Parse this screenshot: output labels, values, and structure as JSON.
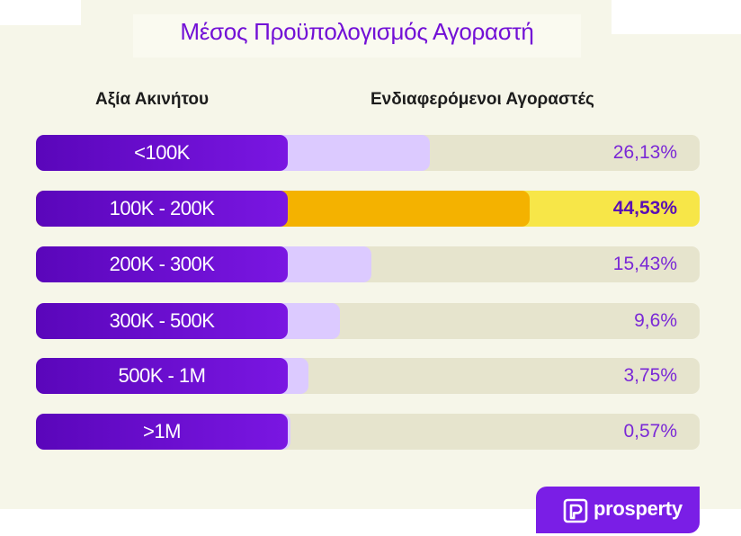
{
  "header": {
    "title": "Μέσος Προϋπολογισμός Αγοραστή"
  },
  "columns": {
    "left": "Αξία Ακινήτου",
    "right": "Ενδιαφερόμενοι Αγοραστές"
  },
  "rows": [
    {
      "label": "<100K",
      "value_text": "26,13%"
    },
    {
      "label": "100K - 200K",
      "value_text": "44,53%"
    },
    {
      "label": "200K - 300K",
      "value_text": "15,43%"
    },
    {
      "label": "300K - 500K",
      "value_text": "9,6%"
    },
    {
      "label": "500K - 1M",
      "value_text": "3,75%"
    },
    {
      "label": ">1M",
      "value_text": "0,57%"
    }
  ],
  "chart_data": {
    "type": "bar",
    "orientation": "horizontal",
    "title": "Μέσος Προϋπολογισμός Αγοραστή",
    "xlabel": "Ενδιαφερόμενοι Αγοραστές",
    "ylabel": "Αξία Ακινήτου",
    "categories": [
      "<100K",
      "100K - 200K",
      "200K - 300K",
      "300K - 500K",
      "500K - 1M",
      ">1M"
    ],
    "values": [
      26.13,
      44.53,
      15.43,
      9.6,
      3.75,
      0.57
    ],
    "highlight_index": 1,
    "colors": {
      "label_pill": "#6a0fd0",
      "bar": "#dccaff",
      "track": "#e6e4cd",
      "highlight_bar": "#f4b200",
      "highlight_track": "#f7e648",
      "value_text": "#7a28d6",
      "title": "#7210d6"
    }
  },
  "brand": {
    "logo_text": "prosperty",
    "color": "#7a1ee6",
    "icon": "prosperty-logo-icon"
  }
}
